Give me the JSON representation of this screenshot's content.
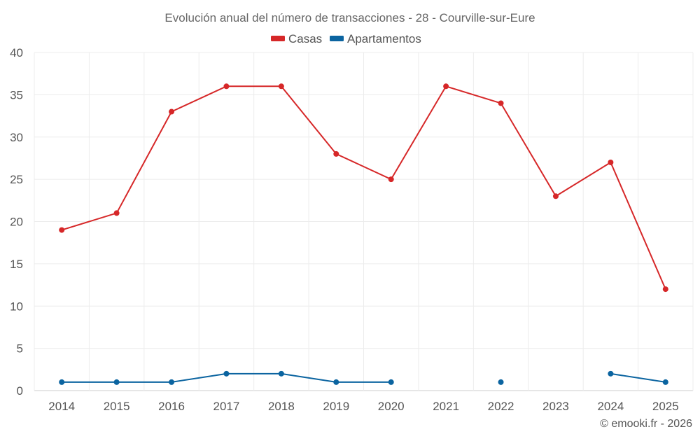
{
  "chart_data": {
    "type": "line",
    "title": "Evolución anual del número de transacciones - 28 - Courville-sur-Eure",
    "categories": [
      "2014",
      "2015",
      "2016",
      "2017",
      "2018",
      "2019",
      "2020",
      "2021",
      "2022",
      "2023",
      "2024",
      "2025"
    ],
    "series": [
      {
        "name": "Casas",
        "color": "#d62728",
        "values": [
          19,
          21,
          33,
          36,
          36,
          28,
          25,
          36,
          34,
          23,
          27,
          12
        ]
      },
      {
        "name": "Apartamentos",
        "color": "#0b64a0",
        "values": [
          1,
          1,
          1,
          2,
          2,
          1,
          1,
          null,
          1,
          null,
          2,
          1
        ]
      }
    ],
    "y_ticks": [
      "0",
      "5",
      "10",
      "15",
      "20",
      "25",
      "30",
      "35",
      "40"
    ],
    "ylim": [
      0,
      40
    ],
    "xlabel": "",
    "ylabel": "",
    "grid": true,
    "legend_position": "top-center"
  },
  "credit": "© emooki.fr - 2026"
}
